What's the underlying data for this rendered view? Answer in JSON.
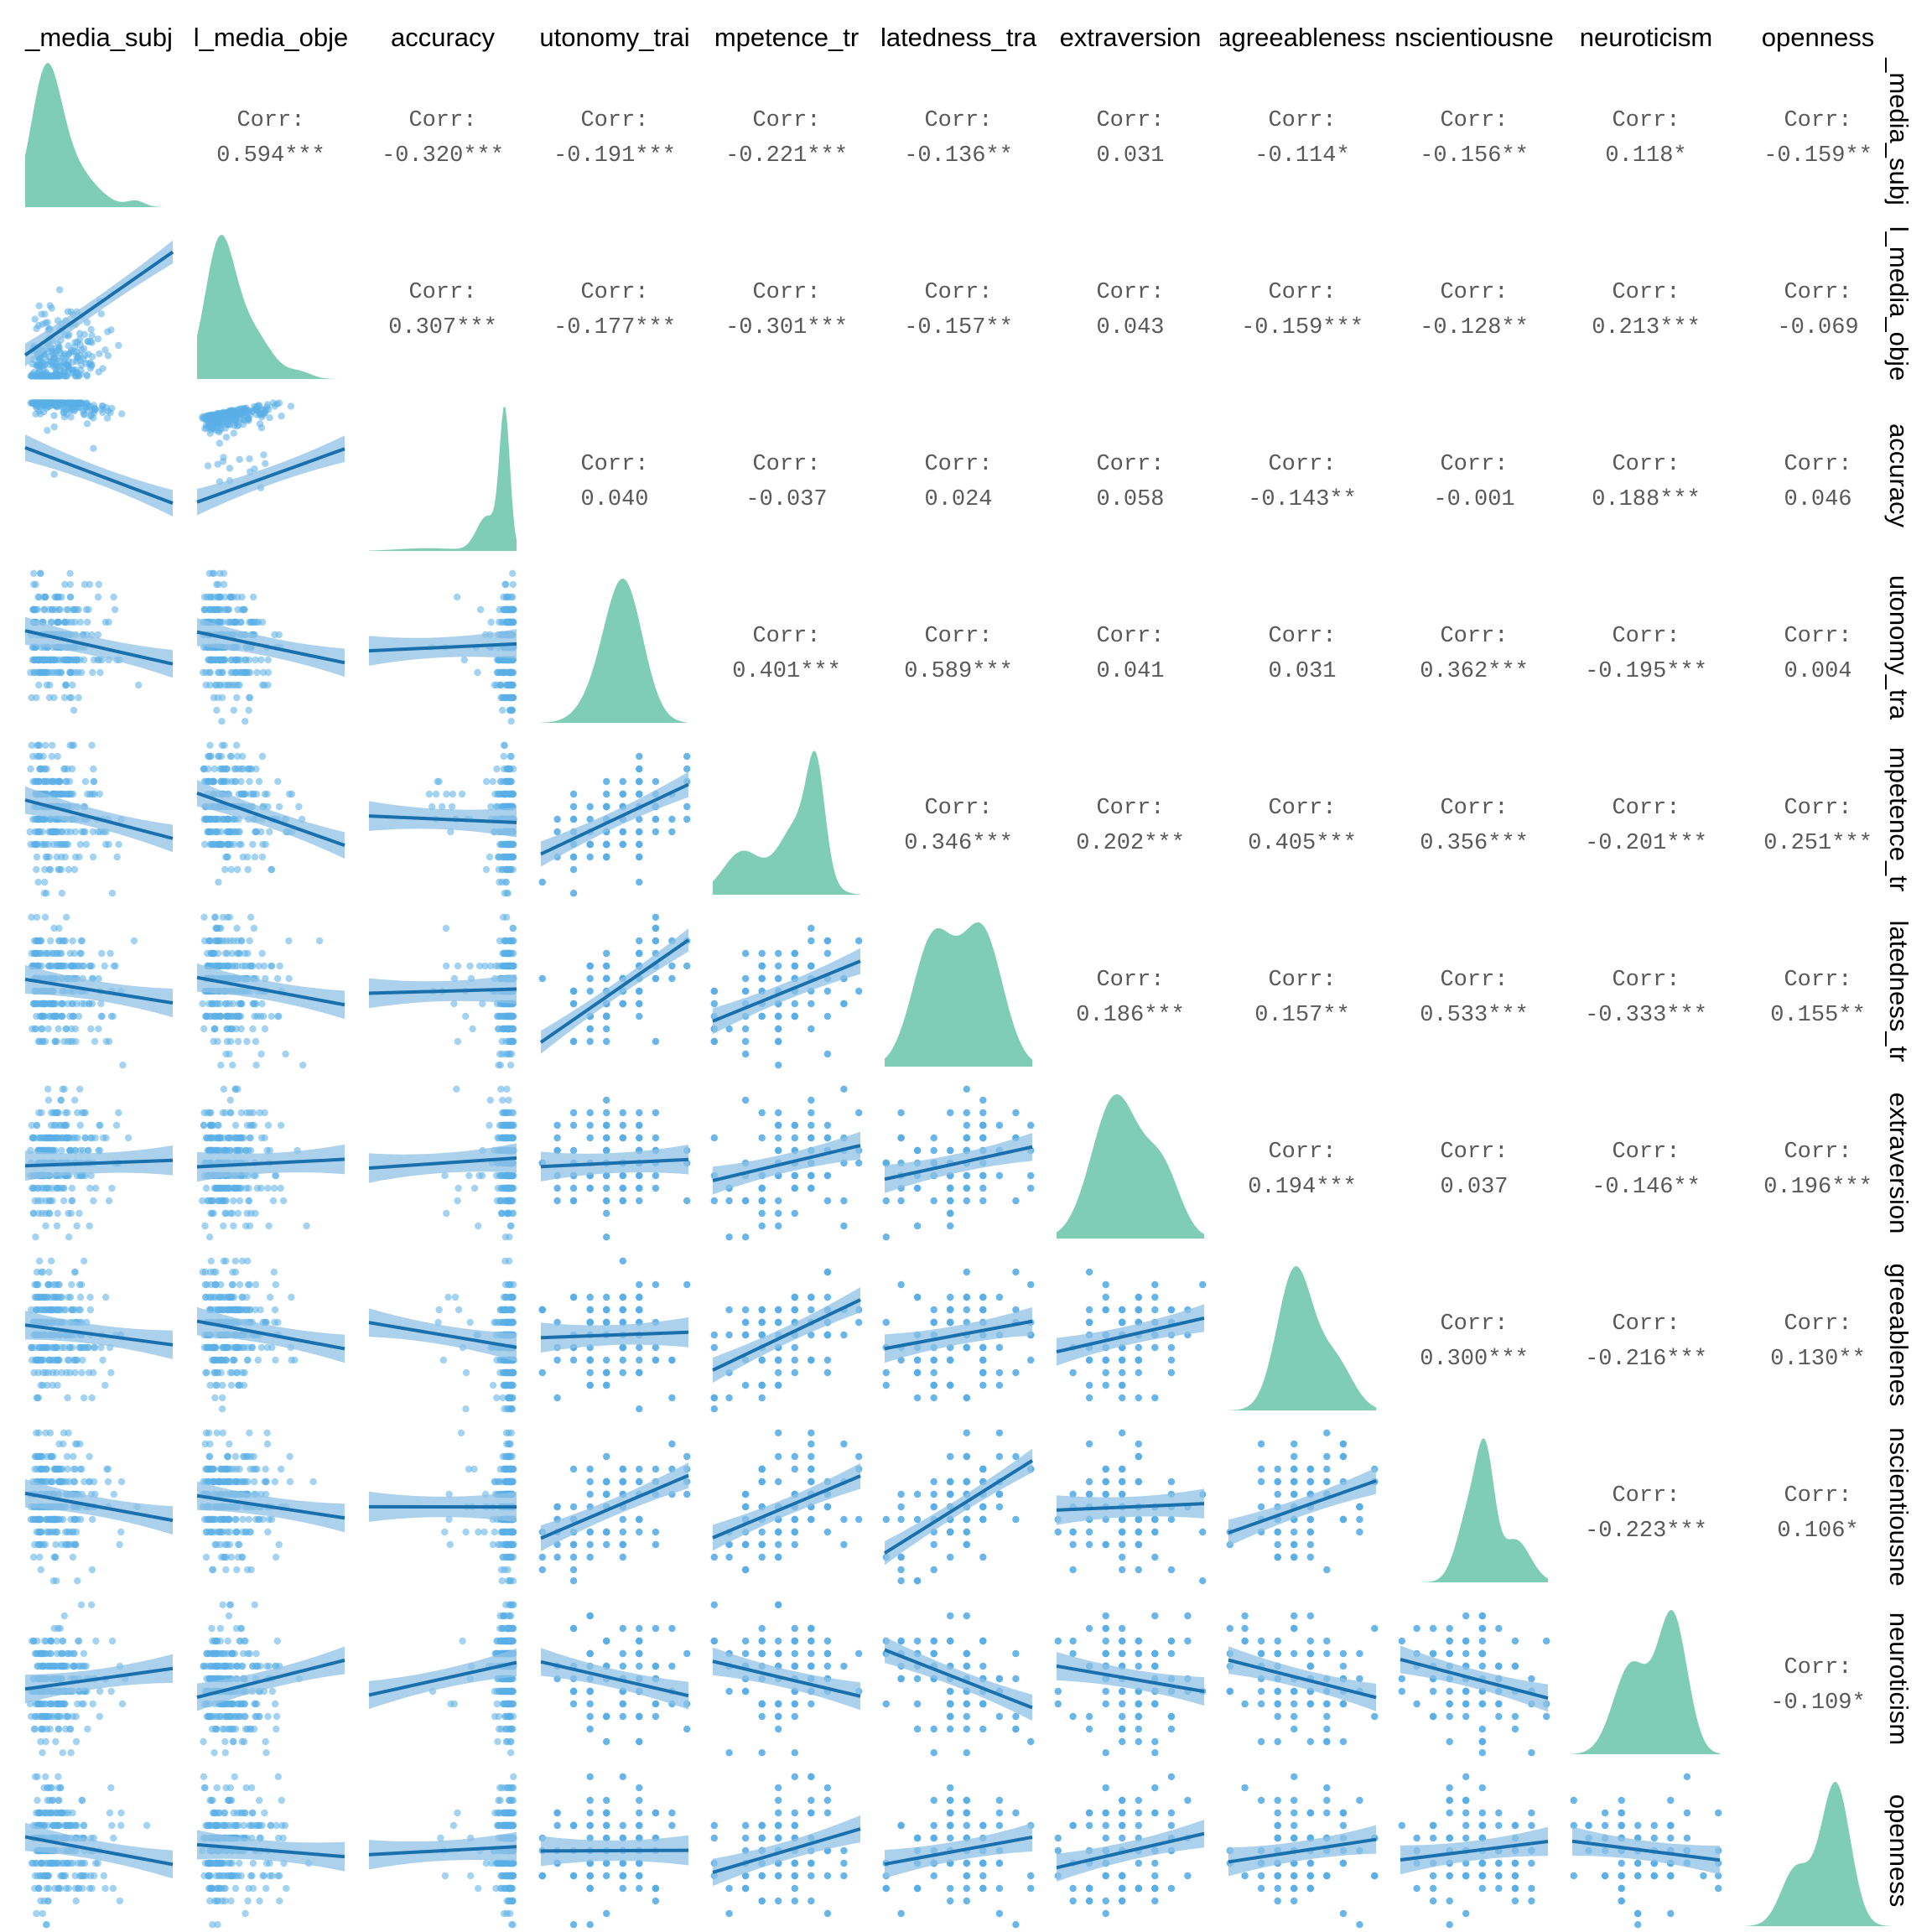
{
  "colors": {
    "density_fill": "#7ecdb4",
    "scatter_point": "#5aaee6",
    "regression_line": "#1a6fad",
    "confidence_band": "#8fc2e6",
    "corr_text": "#595959"
  },
  "chart_data": {
    "type": "scatter",
    "title": "",
    "variables": [
      "social_media_subjective",
      "social_media_objective",
      "accuracy",
      "autonomy_trait",
      "competence_trait",
      "relatedness_trait",
      "extraversion",
      "agreeableness",
      "conscientiousness",
      "neuroticism",
      "openness"
    ],
    "column_labels": [
      "_media_subj",
      "l_media_obje",
      "accuracy",
      "utonomy_trai",
      "mpetence_tr",
      "latedness_tra",
      "extraversion",
      "agreeableness",
      "nscientiousne",
      "neuroticism",
      "openness"
    ],
    "row_labels": [
      "_media_subj",
      "l_media_obje",
      "accuracy",
      "utonomy_tra",
      "mpetence_tr",
      "latedness_tr",
      "extraversion",
      "greeablenes",
      "nscientiousne",
      "neuroticism",
      "openness"
    ],
    "corr_label": "Corr:",
    "correlations": [
      [
        "",
        "0.594***",
        "-0.320***",
        "-0.191***",
        "-0.221***",
        "-0.136**",
        "0.031",
        "-0.114*",
        "-0.156**",
        "0.118*",
        "-0.159**"
      ],
      [
        "",
        "",
        "0.307***",
        "-0.177***",
        "-0.301***",
        "-0.157**",
        "0.043",
        "-0.159***",
        "-0.128**",
        "0.213***",
        "-0.069"
      ],
      [
        "",
        "",
        "",
        "0.040",
        "-0.037",
        "0.024",
        "0.058",
        "-0.143**",
        "-0.001",
        "0.188***",
        "0.046"
      ],
      [
        "",
        "",
        "",
        "",
        "0.401***",
        "0.589***",
        "0.041",
        "0.031",
        "0.362***",
        "-0.195***",
        "0.004"
      ],
      [
        "",
        "",
        "",
        "",
        "",
        "0.346***",
        "0.202***",
        "0.405***",
        "0.356***",
        "-0.201***",
        "0.251***"
      ],
      [
        "",
        "",
        "",
        "",
        "",
        "",
        "0.186***",
        "0.157**",
        "0.533***",
        "-0.333***",
        "0.155**"
      ],
      [
        "",
        "",
        "",
        "",
        "",
        "",
        "",
        "0.194***",
        "0.037",
        "-0.146**",
        "0.196***"
      ],
      [
        "",
        "",
        "",
        "",
        "",
        "",
        "",
        "",
        "0.300***",
        "-0.216***",
        "0.130**"
      ],
      [
        "",
        "",
        "",
        "",
        "",
        "",
        "",
        "",
        "",
        "-0.223***",
        "0.106*"
      ],
      [
        "",
        "",
        "",
        "",
        "",
        "",
        "",
        "",
        "",
        "",
        "-0.109*"
      ],
      [
        "",
        "",
        "",
        "",
        "",
        "",
        "",
        "",
        "",
        "",
        ""
      ]
    ],
    "diagonal": "density",
    "lower": "scatter with linear regression line and confidence band",
    "upper": "correlation coefficient with significance stars",
    "grid": false,
    "legend": "none"
  }
}
